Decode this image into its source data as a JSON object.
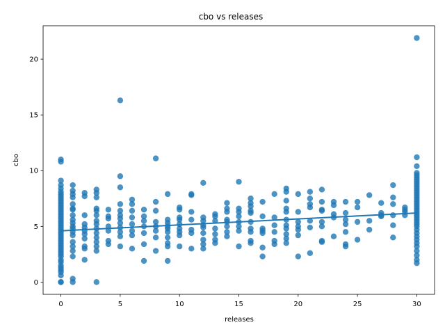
{
  "chart_data": {
    "type": "scatter",
    "title": "cbo vs releases",
    "xlabel": "releases",
    "ylabel": "cbo",
    "xlim": [
      -1.5,
      31.5
    ],
    "ylim": [
      -1.1,
      23.0
    ],
    "xticks": [
      0,
      5,
      10,
      15,
      20,
      25,
      30
    ],
    "yticks": [
      0,
      5,
      10,
      15,
      20
    ],
    "grid": false,
    "point_color": "#1f77b4",
    "trendline": {
      "x": [
        0,
        30
      ],
      "y": [
        4.6,
        6.2
      ]
    },
    "points": [
      [
        0,
        0
      ],
      [
        0,
        0
      ],
      [
        0,
        0.6
      ],
      [
        0,
        0.9
      ],
      [
        0,
        1.1
      ],
      [
        0,
        1.3
      ],
      [
        0,
        1.5
      ],
      [
        0,
        1.8
      ],
      [
        0,
        2.0
      ],
      [
        0,
        2.3
      ],
      [
        0,
        2.5
      ],
      [
        0,
        2.7
      ],
      [
        0,
        2.9
      ],
      [
        0,
        3.1
      ],
      [
        0,
        3.3
      ],
      [
        0,
        3.5
      ],
      [
        0,
        3.7
      ],
      [
        0,
        3.9
      ],
      [
        0,
        4.1
      ],
      [
        0,
        4.3
      ],
      [
        0,
        4.5
      ],
      [
        0,
        4.7
      ],
      [
        0,
        4.9
      ],
      [
        0,
        5.1
      ],
      [
        0,
        5.3
      ],
      [
        0,
        5.5
      ],
      [
        0,
        5.7
      ],
      [
        0,
        5.9
      ],
      [
        0,
        6.1
      ],
      [
        0,
        6.3
      ],
      [
        0,
        6.5
      ],
      [
        0,
        6.7
      ],
      [
        0,
        6.9
      ],
      [
        0,
        7.1
      ],
      [
        0,
        7.3
      ],
      [
        0,
        7.5
      ],
      [
        0,
        7.7
      ],
      [
        0,
        7.9
      ],
      [
        0,
        8.1
      ],
      [
        0,
        8.4
      ],
      [
        0,
        8.7
      ],
      [
        0,
        9.1
      ],
      [
        0,
        10.8
      ],
      [
        0,
        11.0
      ],
      [
        1,
        0
      ],
      [
        1,
        0.3
      ],
      [
        1,
        2.3
      ],
      [
        1,
        2.8
      ],
      [
        1,
        3.2
      ],
      [
        1,
        3.6
      ],
      [
        1,
        4.2
      ],
      [
        1,
        4.5
      ],
      [
        1,
        4.8
      ],
      [
        1,
        5.0
      ],
      [
        1,
        5.3
      ],
      [
        1,
        5.6
      ],
      [
        1,
        6.0
      ],
      [
        1,
        6.5
      ],
      [
        1,
        6.6
      ],
      [
        1,
        7.0
      ],
      [
        1,
        7.6
      ],
      [
        1,
        7.9
      ],
      [
        1,
        8.2
      ],
      [
        1,
        8.7
      ],
      [
        2,
        2.0
      ],
      [
        2,
        3.0
      ],
      [
        2,
        3.2
      ],
      [
        2,
        3.9
      ],
      [
        2,
        4.3
      ],
      [
        2,
        4.6
      ],
      [
        2,
        4.9
      ],
      [
        2,
        5.2
      ],
      [
        2,
        6.0
      ],
      [
        2,
        7.7
      ],
      [
        2,
        8.0
      ],
      [
        3,
        0
      ],
      [
        3,
        2.8
      ],
      [
        3,
        3.2
      ],
      [
        3,
        3.6
      ],
      [
        3,
        4.0
      ],
      [
        3,
        4.4
      ],
      [
        3,
        4.8
      ],
      [
        3,
        5.2
      ],
      [
        3,
        5.5
      ],
      [
        3,
        6.0
      ],
      [
        3,
        6.4
      ],
      [
        3,
        6.6
      ],
      [
        3,
        7.6
      ],
      [
        3,
        8.0
      ],
      [
        3,
        8.3
      ],
      [
        4,
        3.4
      ],
      [
        4,
        3.7
      ],
      [
        4,
        4.6
      ],
      [
        4,
        5.0
      ],
      [
        4,
        5.7
      ],
      [
        4,
        5.9
      ],
      [
        4,
        6.5
      ],
      [
        5,
        3.2
      ],
      [
        5,
        4.1
      ],
      [
        5,
        4.5
      ],
      [
        5,
        4.9
      ],
      [
        5,
        5.3
      ],
      [
        5,
        5.7
      ],
      [
        5,
        6.0
      ],
      [
        5,
        6.4
      ],
      [
        5,
        7.0
      ],
      [
        5,
        8.5
      ],
      [
        5,
        9.5
      ],
      [
        5,
        16.3
      ],
      [
        6,
        3.0
      ],
      [
        6,
        4.2
      ],
      [
        6,
        4.6
      ],
      [
        6,
        5.2
      ],
      [
        6,
        5.8
      ],
      [
        6,
        6.4
      ],
      [
        6,
        7.0
      ],
      [
        6,
        7.4
      ],
      [
        7,
        1.9
      ],
      [
        7,
        3.4
      ],
      [
        7,
        4.4
      ],
      [
        7,
        5.0
      ],
      [
        7,
        5.5
      ],
      [
        7,
        5.9
      ],
      [
        7,
        6.5
      ],
      [
        8,
        2.8
      ],
      [
        8,
        4.0
      ],
      [
        8,
        4.6
      ],
      [
        8,
        5.0
      ],
      [
        8,
        5.4
      ],
      [
        8,
        6.4
      ],
      [
        8,
        7.2
      ],
      [
        8,
        11.1
      ],
      [
        9,
        1.9
      ],
      [
        9,
        3.2
      ],
      [
        9,
        3.5
      ],
      [
        9,
        4.0
      ],
      [
        9,
        4.5
      ],
      [
        9,
        4.8
      ],
      [
        9,
        5.0
      ],
      [
        9,
        5.3
      ],
      [
        9,
        5.6
      ],
      [
        9,
        7.9
      ],
      [
        10,
        3.2
      ],
      [
        10,
        4.2
      ],
      [
        10,
        4.5
      ],
      [
        10,
        4.8
      ],
      [
        10,
        5.2
      ],
      [
        10,
        5.6
      ],
      [
        10,
        5.8
      ],
      [
        10,
        6.5
      ],
      [
        10,
        6.7
      ],
      [
        11,
        3.0
      ],
      [
        11,
        4.4
      ],
      [
        11,
        4.7
      ],
      [
        11,
        5.6
      ],
      [
        11,
        6.3
      ],
      [
        11,
        7.8
      ],
      [
        11,
        7.9
      ],
      [
        12,
        3.0
      ],
      [
        12,
        3.4
      ],
      [
        12,
        3.8
      ],
      [
        12,
        4.4
      ],
      [
        12,
        4.9
      ],
      [
        12,
        5.1
      ],
      [
        12,
        5.5
      ],
      [
        12,
        5.8
      ],
      [
        12,
        8.9
      ],
      [
        13,
        3.5
      ],
      [
        13,
        3.8
      ],
      [
        13,
        4.3
      ],
      [
        13,
        4.8
      ],
      [
        13,
        5.5
      ],
      [
        13,
        5.9
      ],
      [
        13,
        6.1
      ],
      [
        14,
        4.1
      ],
      [
        14,
        4.5
      ],
      [
        14,
        5.0
      ],
      [
        14,
        5.4
      ],
      [
        14,
        5.6
      ],
      [
        14,
        6.3
      ],
      [
        14,
        6.6
      ],
      [
        14,
        7.1
      ],
      [
        15,
        3.2
      ],
      [
        15,
        4.6
      ],
      [
        15,
        5.0
      ],
      [
        15,
        5.4
      ],
      [
        15,
        5.9
      ],
      [
        15,
        6.3
      ],
      [
        15,
        6.6
      ],
      [
        15,
        9.0
      ],
      [
        16,
        3.5
      ],
      [
        16,
        3.7
      ],
      [
        16,
        4.5
      ],
      [
        16,
        4.8
      ],
      [
        16,
        5.4
      ],
      [
        16,
        6.2
      ],
      [
        16,
        6.4
      ],
      [
        16,
        6.8
      ],
      [
        16,
        7.1
      ],
      [
        16,
        7.5
      ],
      [
        17,
        2.3
      ],
      [
        17,
        3.1
      ],
      [
        17,
        4.4
      ],
      [
        17,
        4.6
      ],
      [
        17,
        4.8
      ],
      [
        17,
        5.9
      ],
      [
        17,
        7.2
      ],
      [
        18,
        3.4
      ],
      [
        18,
        3.7
      ],
      [
        18,
        4.5
      ],
      [
        18,
        5.1
      ],
      [
        18,
        5.8
      ],
      [
        18,
        7.9
      ],
      [
        19,
        3.5
      ],
      [
        19,
        3.9
      ],
      [
        19,
        4.3
      ],
      [
        19,
        4.8
      ],
      [
        19,
        5.1
      ],
      [
        19,
        5.6
      ],
      [
        19,
        6.3
      ],
      [
        19,
        6.6
      ],
      [
        19,
        7.3
      ],
      [
        19,
        8.1
      ],
      [
        19,
        8.4
      ],
      [
        20,
        2.3
      ],
      [
        20,
        4.2
      ],
      [
        20,
        4.7
      ],
      [
        20,
        5.0
      ],
      [
        20,
        5.4
      ],
      [
        20,
        6.3
      ],
      [
        20,
        7.9
      ],
      [
        21,
        2.6
      ],
      [
        21,
        4.9
      ],
      [
        21,
        5.5
      ],
      [
        21,
        6.7
      ],
      [
        21,
        7.0
      ],
      [
        21,
        7.5
      ],
      [
        21,
        8.1
      ],
      [
        22,
        3.6
      ],
      [
        22,
        3.7
      ],
      [
        22,
        5.0
      ],
      [
        22,
        5.4
      ],
      [
        22,
        6.4
      ],
      [
        22,
        6.5
      ],
      [
        22,
        7.2
      ],
      [
        22,
        8.3
      ],
      [
        23,
        4.1
      ],
      [
        23,
        5.8
      ],
      [
        23,
        6.1
      ],
      [
        23,
        6.9
      ],
      [
        23,
        7.2
      ],
      [
        24,
        3.2
      ],
      [
        24,
        3.4
      ],
      [
        24,
        4.5
      ],
      [
        24,
        5.2
      ],
      [
        24,
        5.6
      ],
      [
        24,
        6.2
      ],
      [
        24,
        7.2
      ],
      [
        25,
        3.8
      ],
      [
        25,
        5.4
      ],
      [
        25,
        6.7
      ],
      [
        25,
        7.2
      ],
      [
        26,
        4.7
      ],
      [
        26,
        5.5
      ],
      [
        26,
        7.8
      ],
      [
        27,
        5.9
      ],
      [
        27,
        6.0
      ],
      [
        27,
        6.2
      ],
      [
        27,
        7.1
      ],
      [
        28,
        4.0
      ],
      [
        28,
        5.1
      ],
      [
        28,
        6.0
      ],
      [
        28,
        7.0
      ],
      [
        28,
        7.6
      ],
      [
        28,
        8.7
      ],
      [
        29,
        6.0
      ],
      [
        29,
        6.3
      ],
      [
        29,
        6.5
      ],
      [
        29,
        6.7
      ],
      [
        30,
        1.7
      ],
      [
        30,
        2.0
      ],
      [
        30,
        2.4
      ],
      [
        30,
        2.8
      ],
      [
        30,
        3.2
      ],
      [
        30,
        3.5
      ],
      [
        30,
        3.8
      ],
      [
        30,
        4.1
      ],
      [
        30,
        4.4
      ],
      [
        30,
        4.7
      ],
      [
        30,
        5.0
      ],
      [
        30,
        5.2
      ],
      [
        30,
        5.4
      ],
      [
        30,
        5.6
      ],
      [
        30,
        5.8
      ],
      [
        30,
        6.0
      ],
      [
        30,
        6.2
      ],
      [
        30,
        6.4
      ],
      [
        30,
        6.6
      ],
      [
        30,
        6.8
      ],
      [
        30,
        7.0
      ],
      [
        30,
        7.2
      ],
      [
        30,
        7.4
      ],
      [
        30,
        7.6
      ],
      [
        30,
        7.8
      ],
      [
        30,
        8.0
      ],
      [
        30,
        8.2
      ],
      [
        30,
        8.4
      ],
      [
        30,
        8.6
      ],
      [
        30,
        8.8
      ],
      [
        30,
        9.0
      ],
      [
        30,
        9.2
      ],
      [
        30,
        9.4
      ],
      [
        30,
        9.6
      ],
      [
        30,
        9.8
      ],
      [
        30,
        10.4
      ],
      [
        30,
        11.2
      ],
      [
        30,
        21.9
      ]
    ]
  }
}
